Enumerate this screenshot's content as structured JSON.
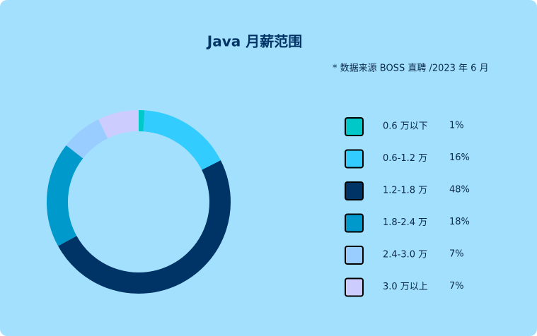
{
  "chart_data": {
    "type": "donut",
    "title": "Java 月薪范围",
    "subtitle": "* 数据来源 BOSS 直聘 /2023 年 6 月",
    "categories": [
      "0.6 万以下",
      "0.6-1.2 万",
      "1.2-1.8 万",
      "1.8-2.4 万",
      "2.4-3.0 万",
      "3.0 万以上"
    ],
    "values": [
      1,
      16,
      48,
      18,
      7,
      7
    ],
    "value_labels": [
      "1%",
      "16%",
      "48%",
      "18%",
      "7%",
      "7%"
    ],
    "colors": [
      "#00c8c8",
      "#33ccff",
      "#003366",
      "#0099cc",
      "#99ccff",
      "#ccccff"
    ],
    "legend": "right"
  }
}
